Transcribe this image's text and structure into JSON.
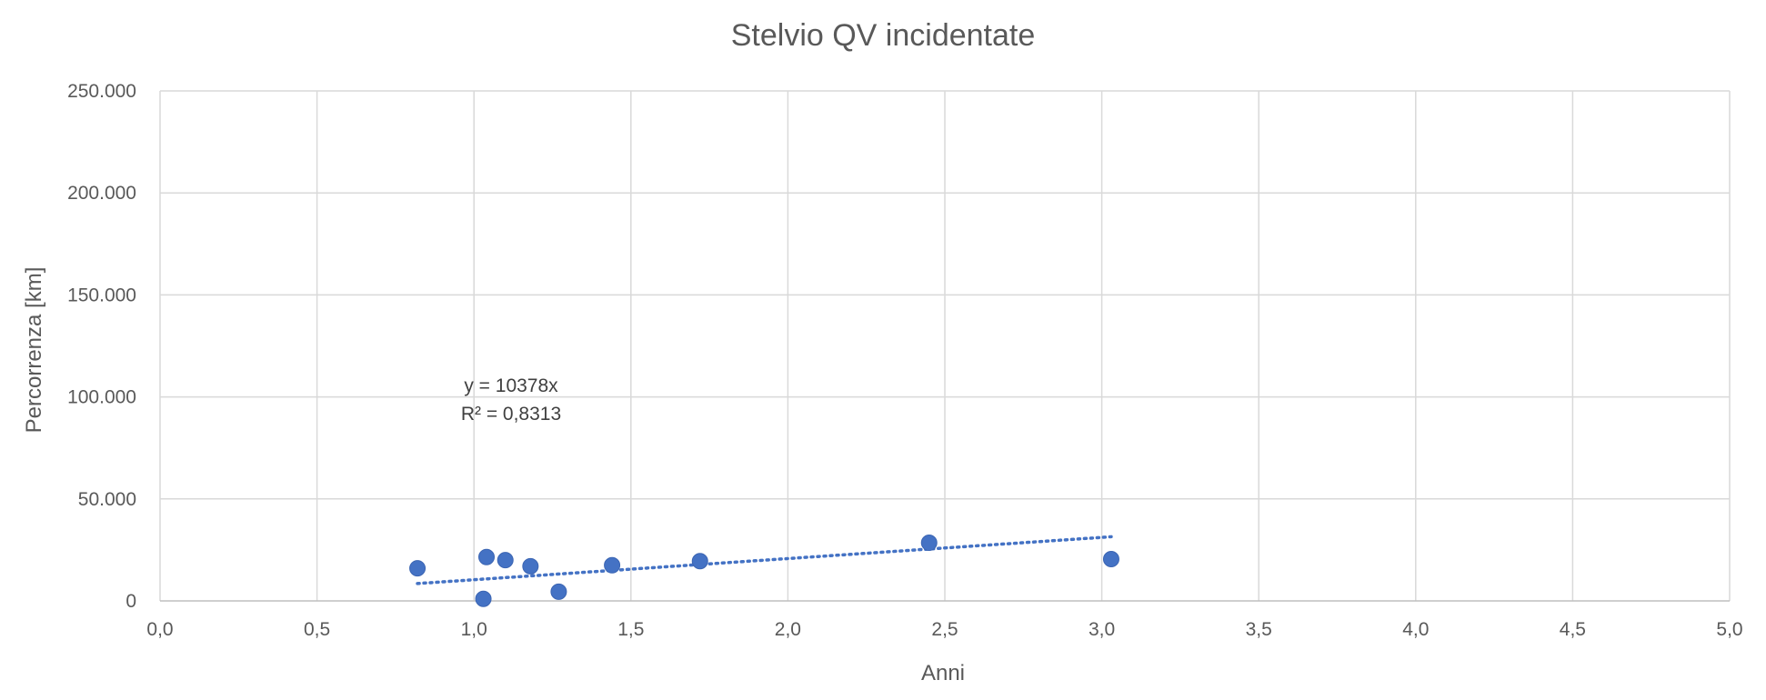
{
  "chart_data": {
    "type": "scatter",
    "title": "Stelvio QV incidentate",
    "xlabel": "Anni",
    "ylabel": "Percorrenza [km]",
    "xlim": [
      0,
      5
    ],
    "ylim": [
      0,
      250000
    ],
    "x_ticks": [
      "0,0",
      "0,5",
      "1,0",
      "1,5",
      "2,0",
      "2,5",
      "3,0",
      "3,5",
      "4,0",
      "4,5",
      "5,0"
    ],
    "y_ticks": [
      "0",
      "50.000",
      "100.000",
      "150.000",
      "200.000",
      "250.000"
    ],
    "x_tick_values": [
      0,
      0.5,
      1,
      1.5,
      2,
      2.5,
      3,
      3.5,
      4,
      4.5,
      5
    ],
    "y_tick_values": [
      0,
      50000,
      100000,
      150000,
      200000,
      250000
    ],
    "grid": true,
    "marker_color": "#4472c4",
    "series": [
      {
        "name": "Stelvio QV incidentate",
        "points": [
          {
            "x": 0.82,
            "y": 16000
          },
          {
            "x": 1.03,
            "y": 1000
          },
          {
            "x": 1.04,
            "y": 21500
          },
          {
            "x": 1.1,
            "y": 20000
          },
          {
            "x": 1.18,
            "y": 17000
          },
          {
            "x": 1.27,
            "y": 4500
          },
          {
            "x": 1.44,
            "y": 17500
          },
          {
            "x": 1.72,
            "y": 19500
          },
          {
            "x": 2.45,
            "y": 28500
          },
          {
            "x": 3.03,
            "y": 20500
          }
        ]
      }
    ],
    "trendline": {
      "type": "linear-through-origin",
      "slope": 10378,
      "x_range": [
        0.82,
        3.03
      ],
      "color": "#4472c4",
      "style": "dotted",
      "equation_label": "y = 10378x",
      "r2_label": "R² = 0,8313"
    }
  }
}
